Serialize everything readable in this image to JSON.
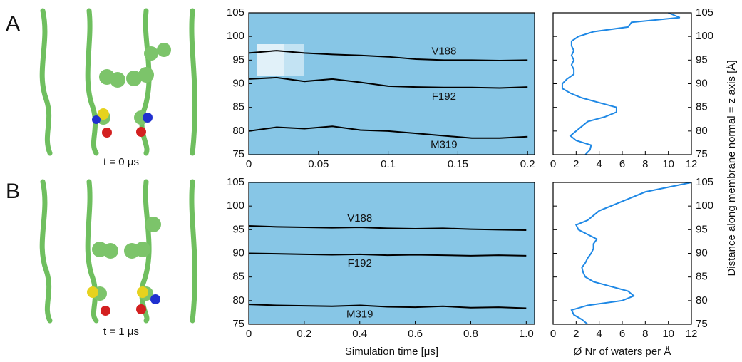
{
  "figure": {
    "panel_a": "A",
    "panel_b": "B",
    "caption_a": "t = 0 μs",
    "caption_b": "t = 1 μs"
  },
  "chart_data": [
    {
      "type": "line",
      "xlim": [
        0,
        0.205
      ],
      "xticks": [
        0,
        0.05,
        0.1,
        0.15,
        0.2
      ],
      "ylim": [
        75,
        105
      ],
      "yticks": [
        75,
        80,
        85,
        90,
        95,
        100,
        105
      ],
      "x": [
        0,
        0.02,
        0.04,
        0.06,
        0.08,
        0.1,
        0.12,
        0.14,
        0.16,
        0.18,
        0.2
      ],
      "series": [
        {
          "name": "V188",
          "color": "#000000",
          "values": [
            96.5,
            97,
            96.5,
            96.2,
            96,
            95.7,
            95.2,
            95,
            95,
            94.9,
            95
          ]
        },
        {
          "name": "F192",
          "color": "#000000",
          "values": [
            91,
            91.3,
            90.5,
            91,
            90.3,
            89.5,
            89.3,
            89.2,
            89.2,
            89.1,
            89.3
          ]
        },
        {
          "name": "M319",
          "color": "#000000",
          "values": [
            80,
            80.8,
            80.5,
            81,
            80.2,
            80,
            79.5,
            79,
            78.5,
            78.5,
            78.8
          ]
        }
      ]
    },
    {
      "type": "profile",
      "xlim": [
        0,
        12
      ],
      "xticks": [
        0,
        2,
        4,
        6,
        8,
        10,
        12
      ],
      "ylim": [
        75,
        105
      ],
      "yticks": [
        75,
        80,
        85,
        90,
        95,
        100,
        105
      ],
      "y": [
        75,
        76,
        77,
        78,
        79,
        80,
        81,
        82,
        83,
        84,
        85,
        86,
        87,
        88,
        89,
        90,
        91,
        92,
        93,
        94,
        95,
        96,
        97,
        98,
        99,
        100,
        101,
        102,
        103,
        104,
        105
      ],
      "series": [
        {
          "color": "#1e88e5",
          "values": [
            2.8,
            3.2,
            3.3,
            2,
            1.5,
            2,
            2.5,
            3,
            4.5,
            5.5,
            5.5,
            4,
            2.5,
            1.5,
            0.8,
            0.8,
            1.2,
            1.8,
            1.8,
            1.6,
            1.8,
            1.6,
            1.8,
            1.6,
            1.6,
            2.2,
            3.5,
            6.5,
            6.8,
            11,
            10
          ]
        }
      ]
    },
    {
      "type": "line",
      "xlim": [
        0,
        1.03
      ],
      "xticks": [
        0,
        0.2,
        0.4,
        0.6,
        0.8,
        {
          "value": 1,
          "label": "1.0"
        }
      ],
      "ylim": [
        75,
        105
      ],
      "yticks": [
        75,
        80,
        85,
        90,
        95,
        100,
        105
      ],
      "xlabel": "Simulation time [μs]",
      "x": [
        0,
        0.1,
        0.2,
        0.3,
        0.4,
        0.5,
        0.6,
        0.7,
        0.8,
        0.9,
        1.0
      ],
      "series": [
        {
          "name": "V188",
          "color": "#000000",
          "values": [
            95.8,
            95.6,
            95.5,
            95.4,
            95.5,
            95.3,
            95.2,
            95.3,
            95.1,
            95,
            94.9
          ]
        },
        {
          "name": "F192",
          "color": "#000000",
          "values": [
            90,
            89.9,
            89.8,
            89.7,
            89.8,
            89.6,
            89.7,
            89.6,
            89.5,
            89.6,
            89.5
          ]
        },
        {
          "name": "M319",
          "color": "#000000",
          "values": [
            79.2,
            79,
            78.9,
            78.8,
            79,
            78.7,
            78.6,
            78.8,
            78.5,
            78.6,
            78.4
          ]
        }
      ]
    },
    {
      "type": "profile",
      "xlim": [
        0,
        12
      ],
      "xticks": [
        0,
        2,
        4,
        6,
        8,
        10,
        12
      ],
      "ylim": [
        75,
        105
      ],
      "yticks": [
        75,
        80,
        85,
        90,
        95,
        100,
        105
      ],
      "xlabel": "Ø Nr of waters per Å",
      "ylabel": "Distance along membrane normal = z axis [Å]",
      "y": [
        75,
        76,
        77,
        78,
        79,
        80,
        81,
        82,
        83,
        84,
        85,
        86,
        87,
        88,
        89,
        90,
        91,
        92,
        93,
        94,
        95,
        96,
        97,
        98,
        99,
        100,
        101,
        102,
        103,
        104,
        105
      ],
      "series": [
        {
          "color": "#1e88e5",
          "values": [
            3,
            2.5,
            1.8,
            1.6,
            3,
            6,
            7,
            6.5,
            5,
            3.5,
            2.8,
            2.6,
            2.5,
            2.8,
            3,
            3.3,
            3.5,
            3.5,
            3.8,
            3,
            2.2,
            2,
            3,
            3.5,
            4,
            5,
            6,
            7,
            8,
            10,
            12
          ]
        }
      ]
    }
  ]
}
